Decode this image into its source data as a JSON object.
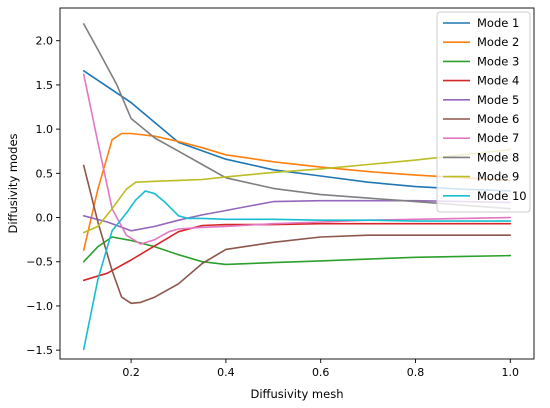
{
  "chart_data": {
    "type": "line",
    "title": "",
    "xlabel": "Diffusivity mesh",
    "ylabel": "Diffusivity modes",
    "xlim": [
      0.05,
      1.05
    ],
    "ylim": [
      -1.6,
      2.37
    ],
    "xticks": [
      0.2,
      0.4,
      0.6,
      0.8,
      1.0
    ],
    "xtick_labels": [
      "0.2",
      "0.4",
      "0.6",
      "0.8",
      "1.0"
    ],
    "yticks": [
      -1.5,
      -1.0,
      -0.5,
      0.0,
      0.5,
      1.0,
      1.5,
      2.0
    ],
    "ytick_labels": [
      "−1.5",
      "−1.0",
      "−0.5",
      "0.0",
      "0.5",
      "1.0",
      "1.5",
      "2.0"
    ],
    "grid": false,
    "legend_position": "top-right",
    "series": [
      {
        "name": "Mode 1",
        "color": "#1f77b4",
        "x": [
          0.1,
          0.2,
          0.3,
          0.4,
          0.5,
          0.6,
          0.7,
          0.8,
          0.9,
          1.0
        ],
        "y": [
          1.66,
          1.3,
          0.85,
          0.66,
          0.54,
          0.47,
          0.4,
          0.35,
          0.32,
          0.3
        ]
      },
      {
        "name": "Mode 2",
        "color": "#ff7f0e",
        "x": [
          0.1,
          0.13,
          0.16,
          0.18,
          0.2,
          0.25,
          0.3,
          0.35,
          0.4,
          0.5,
          0.6,
          0.7,
          0.8,
          0.9,
          1.0
        ],
        "y": [
          -0.37,
          0.32,
          0.88,
          0.95,
          0.95,
          0.92,
          0.86,
          0.79,
          0.71,
          0.63,
          0.57,
          0.52,
          0.48,
          0.45,
          0.42
        ]
      },
      {
        "name": "Mode 3",
        "color": "#2ca02c",
        "x": [
          0.1,
          0.13,
          0.16,
          0.2,
          0.25,
          0.3,
          0.35,
          0.4,
          0.5,
          0.6,
          0.7,
          0.8,
          0.9,
          1.0
        ],
        "y": [
          -0.5,
          -0.33,
          -0.22,
          -0.26,
          -0.33,
          -0.42,
          -0.5,
          -0.53,
          -0.51,
          -0.49,
          -0.47,
          -0.45,
          -0.44,
          -0.43
        ]
      },
      {
        "name": "Mode 4",
        "color": "#d62728",
        "x": [
          0.1,
          0.15,
          0.2,
          0.25,
          0.3,
          0.35,
          0.4,
          0.5,
          0.6,
          0.7,
          0.8,
          0.9,
          1.0
        ],
        "y": [
          -0.71,
          -0.63,
          -0.48,
          -0.32,
          -0.16,
          -0.09,
          -0.08,
          -0.08,
          -0.07,
          -0.07,
          -0.07,
          -0.07,
          -0.07
        ]
      },
      {
        "name": "Mode 5",
        "color": "#9467bd",
        "x": [
          0.1,
          0.15,
          0.2,
          0.25,
          0.3,
          0.35,
          0.4,
          0.45,
          0.5,
          0.6,
          0.7,
          0.8,
          0.9,
          1.0
        ],
        "y": [
          0.02,
          -0.05,
          -0.15,
          -0.1,
          -0.03,
          0.03,
          0.08,
          0.13,
          0.18,
          0.19,
          0.19,
          0.19,
          0.18,
          0.17
        ]
      },
      {
        "name": "Mode 6",
        "color": "#8c564b",
        "x": [
          0.1,
          0.13,
          0.16,
          0.18,
          0.2,
          0.22,
          0.25,
          0.3,
          0.35,
          0.4,
          0.5,
          0.6,
          0.7,
          0.8,
          0.9,
          1.0
        ],
        "y": [
          0.59,
          -0.05,
          -0.6,
          -0.9,
          -0.97,
          -0.96,
          -0.9,
          -0.75,
          -0.52,
          -0.36,
          -0.28,
          -0.22,
          -0.2,
          -0.2,
          -0.2,
          -0.2
        ]
      },
      {
        "name": "Mode 7",
        "color": "#e377c2",
        "x": [
          0.1,
          0.13,
          0.16,
          0.19,
          0.22,
          0.25,
          0.28,
          0.3,
          0.35,
          0.4,
          0.5,
          0.6,
          0.7,
          0.8,
          0.9,
          1.0
        ],
        "y": [
          1.62,
          0.85,
          0.1,
          -0.2,
          -0.3,
          -0.25,
          -0.16,
          -0.13,
          -0.11,
          -0.1,
          -0.07,
          -0.05,
          -0.03,
          -0.02,
          -0.01,
          0.0
        ]
      },
      {
        "name": "Mode 8",
        "color": "#7f7f7f",
        "x": [
          0.1,
          0.13,
          0.17,
          0.2,
          0.25,
          0.3,
          0.35,
          0.4,
          0.5,
          0.6,
          0.7,
          0.8,
          0.9,
          1.0
        ],
        "y": [
          2.19,
          1.9,
          1.5,
          1.12,
          0.9,
          0.75,
          0.6,
          0.45,
          0.33,
          0.26,
          0.22,
          0.18,
          0.14,
          0.1
        ]
      },
      {
        "name": "Mode 9",
        "color": "#bcbd22",
        "x": [
          0.1,
          0.13,
          0.16,
          0.19,
          0.21,
          0.25,
          0.3,
          0.35,
          0.4,
          0.5,
          0.6,
          0.7,
          0.8,
          0.9,
          1.0
        ],
        "y": [
          -0.17,
          -0.1,
          0.1,
          0.32,
          0.4,
          0.41,
          0.42,
          0.43,
          0.46,
          0.51,
          0.55,
          0.6,
          0.65,
          0.71,
          0.77
        ]
      },
      {
        "name": "Mode 10",
        "color": "#17becf",
        "x": [
          0.1,
          0.13,
          0.16,
          0.19,
          0.21,
          0.23,
          0.25,
          0.27,
          0.3,
          0.32,
          0.35,
          0.4,
          0.5,
          0.6,
          0.7,
          0.8,
          0.9,
          1.0
        ],
        "y": [
          -1.49,
          -0.7,
          -0.15,
          0.05,
          0.2,
          0.3,
          0.27,
          0.18,
          0.02,
          -0.01,
          -0.01,
          -0.02,
          -0.02,
          -0.03,
          -0.03,
          -0.04,
          -0.04,
          -0.04
        ]
      }
    ]
  }
}
